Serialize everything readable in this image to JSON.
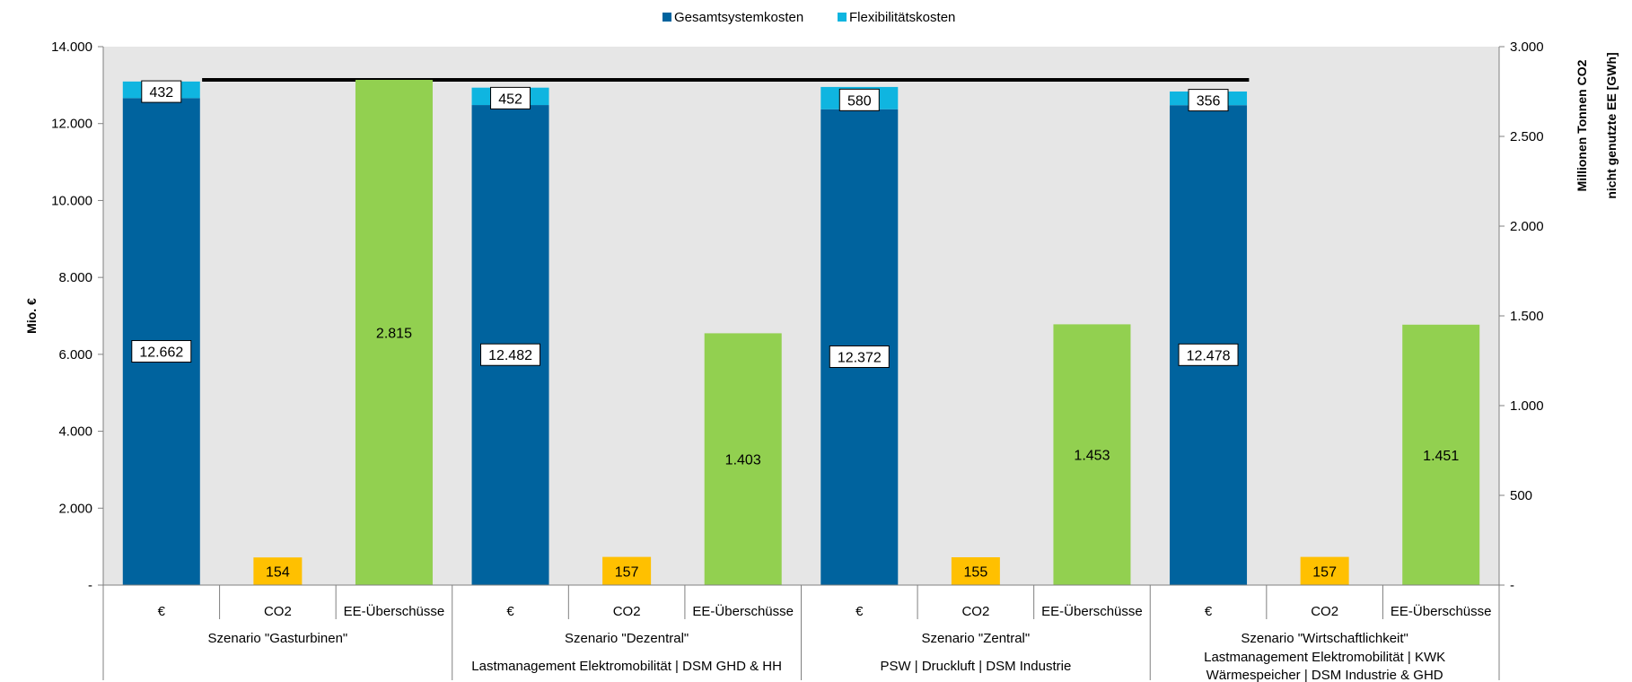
{
  "chart_data": {
    "type": "bar",
    "legend": {
      "placement": "top-center",
      "entries": [
        {
          "name": "Gesamtsystemkosten",
          "color": "#00639E"
        },
        {
          "name": "Flexibilitätskosten",
          "color": "#0FB5E0"
        }
      ]
    },
    "ylabel_left": "Mio. €",
    "ylabel_right_line1": "Millionen Tonnen CO2",
    "ylabel_right_line2": "nicht genutzte EE [GWh]",
    "ylim_left": [
      0,
      14000
    ],
    "ylim_right": [
      0,
      3000
    ],
    "left_ticks": [
      {
        "value": 0,
        "label": "-"
      },
      {
        "value": 2000,
        "label": "2.000"
      },
      {
        "value": 4000,
        "label": "4.000"
      },
      {
        "value": 6000,
        "label": "6.000"
      },
      {
        "value": 8000,
        "label": "8.000"
      },
      {
        "value": 10000,
        "label": "10.000"
      },
      {
        "value": 12000,
        "label": "12.000"
      },
      {
        "value": 14000,
        "label": "14.000"
      }
    ],
    "right_ticks": [
      {
        "value": 0,
        "label": "-"
      },
      {
        "value": 500,
        "label": "500"
      },
      {
        "value": 1000,
        "label": "1.000"
      },
      {
        "value": 1500,
        "label": "1.500"
      },
      {
        "value": 2000,
        "label": "2.000"
      },
      {
        "value": 2500,
        "label": "2.500"
      },
      {
        "value": 3000,
        "label": "3.000"
      }
    ],
    "grid": false,
    "plot_background": "#E6E6E6",
    "reference_line": {
      "axis": "right",
      "value": 2815,
      "color": "#000000"
    },
    "colors": {
      "co2": "#FFC000",
      "ee": "#92D050"
    },
    "categories": [
      "€",
      "CO2",
      "EE-Überschüsse"
    ],
    "groups": [
      {
        "name": "Szenario \"Gasturbinen\"",
        "subtitle_lines": [],
        "gesamt": 12662,
        "gesamt_label": "12.662",
        "flex": 432,
        "flex_label": "432",
        "co2": 154,
        "co2_label": "154",
        "ee": 2815,
        "ee_label": "2.815"
      },
      {
        "name": "Szenario \"Dezentral\"",
        "subtitle_lines": [
          "Lastmanagement Elektromobilität | DSM GHD & HH"
        ],
        "gesamt": 12482,
        "gesamt_label": "12.482",
        "flex": 452,
        "flex_label": "452",
        "co2": 157,
        "co2_label": "157",
        "ee": 1403,
        "ee_label": "1.403"
      },
      {
        "name": "Szenario \"Zentral\"",
        "subtitle_lines": [
          "PSW | Druckluft | DSM Industrie"
        ],
        "gesamt": 12372,
        "gesamt_label": "12.372",
        "flex": 580,
        "flex_label": "580",
        "co2": 155,
        "co2_label": "155",
        "ee": 1453,
        "ee_label": "1.453"
      },
      {
        "name": "Szenario \"Wirtschaftlichkeit\"",
        "subtitle_lines": [
          "Lastmanagement Elektromobilität | KWK",
          "Wärmespeicher | DSM Industrie & GHD"
        ],
        "gesamt": 12478,
        "gesamt_label": "12.478",
        "flex": 356,
        "flex_label": "356",
        "co2": 157,
        "co2_label": "157",
        "ee": 1451,
        "ee_label": "1.451"
      }
    ]
  }
}
